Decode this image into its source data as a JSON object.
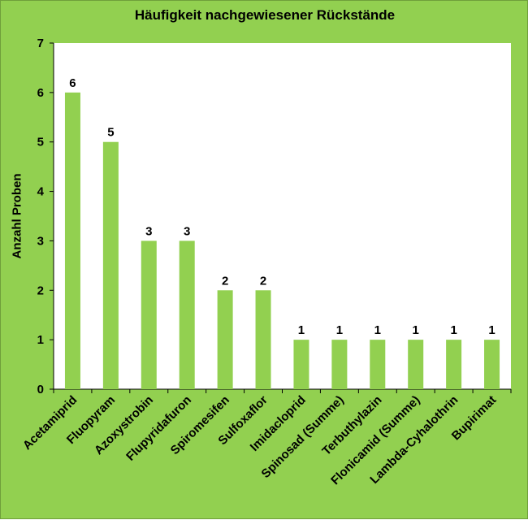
{
  "colors": {
    "background": "#92d050",
    "plot_area": "#ffffff",
    "bar": "#92d050",
    "text": "#000000"
  },
  "chart_data": {
    "type": "bar",
    "title": "Häufigkeit nachgewiesener Rückstände",
    "xlabel": "",
    "ylabel": "Anzahl Proben",
    "ylim": [
      0,
      7
    ],
    "yticks": [
      0,
      1,
      2,
      3,
      4,
      5,
      6,
      7
    ],
    "grid": false,
    "categories": [
      "Acetamiprid",
      "Fluopyram",
      "Azoxystrobin",
      "Flupyridafuron",
      "Spiromesifen",
      "Sulfoxaflor",
      "Imidacloprid",
      "Spinosad (Summe)",
      "Terbuthylazin",
      "Flonicamid (Summe)",
      "Lambda-Cyhalothrin",
      "Bupirimat"
    ],
    "values": [
      6,
      5,
      3,
      3,
      2,
      2,
      1,
      1,
      1,
      1,
      1,
      1
    ],
    "data_labels": true
  }
}
